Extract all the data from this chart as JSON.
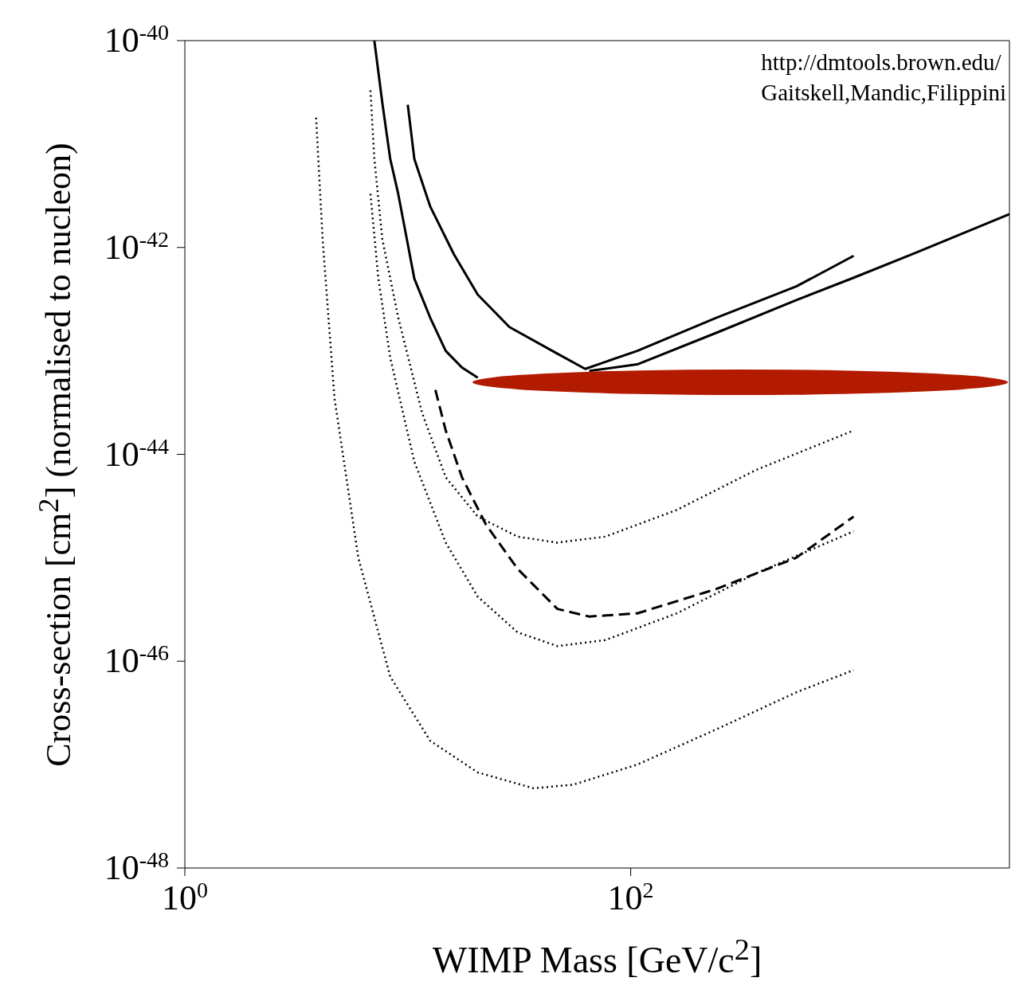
{
  "chart_data": {
    "type": "line",
    "xlabel": "WIMP Mass [GeV/c$^{2}$]",
    "ylabel": "Cross-section [cm$^{2}$] (normalised to nucleon)",
    "log": "xy",
    "xlim": [
      1,
      5000
    ],
    "ylim": [
      1e-48,
      1e-40
    ],
    "xticks": [
      {
        "value": 1,
        "label": "10$^{0}$"
      },
      {
        "value": 100,
        "label": "10$^{2}$"
      }
    ],
    "yticks": [
      {
        "value": 1e-48,
        "label": "10$^{-48}$"
      },
      {
        "value": 1e-46,
        "label": "10$^{-46}$"
      },
      {
        "value": 1e-44,
        "label": "10$^{-44}$"
      },
      {
        "value": 1e-42,
        "label": "10$^{-42}$"
      },
      {
        "value": 1e-40,
        "label": "10$^{-40}$"
      }
    ],
    "annotations": [
      "http://dmtools.brown.edu/",
      "Gaitskell,Mandic,Filippini"
    ],
    "series": [
      {
        "color": "#000000",
        "line_style": "solid",
        "x": [
          7.08,
          7.69,
          8.34,
          9.06,
          10.7,
          12.6,
          14.8,
          17.5,
          20.6,
          28.6,
          46.9,
          65.2,
          107,
          243,
          553,
          1000,
          1900,
          5000
        ],
        "values": [
          1e-40,
          2.5e-41,
          7.2e-42,
          3.3e-42,
          5e-43,
          2.1e-43,
          1e-43,
          6.9e-44,
          5.5e-44,
          null,
          null,
          6.4e-44,
          7.4e-44,
          1.5e-43,
          3.1e-43,
          5.1e-43,
          8.9e-43,
          2.1e-42
        ]
      },
      {
        "color": "#000000",
        "line_style": "solid",
        "x": [
          10,
          10.7,
          12.6,
          16.1,
          20.6,
          28.6,
          46.9,
          62.5,
          107,
          243,
          553,
          1000
        ],
        "values": [
          2.4e-41,
          7.2e-42,
          2.5e-42,
          8.6e-43,
          3.5e-43,
          1.7e-43,
          9.4e-44,
          6.7e-44,
          1e-43,
          2.1e-43,
          4.2e-43,
          8.3e-43
        ]
      },
      {
        "color": "#000000",
        "line_style": "dashed",
        "x": [
          13.3,
          14.8,
          17.5,
          22.4,
          31.1,
          46.9,
          65.2,
          107,
          243,
          553,
          1000
        ],
        "values": [
          4.2e-44,
          1.7e-44,
          6e-45,
          2.1e-45,
          7.8e-46,
          3.2e-46,
          2.7e-46,
          2.9e-46,
          5e-46,
          1e-45,
          2.5e-45
        ]
      },
      {
        "color": "#000000",
        "line_style": "dotted",
        "x": [
          6.8,
          7.08,
          7.69,
          9.06,
          11.6,
          14.8,
          20.6,
          31.1,
          46.9,
          76.9,
          161,
          367,
          1000
        ],
        "values": [
          3.3e-41,
          7.2e-42,
          1.2e-42,
          2.1e-43,
          2.5e-44,
          6e-45,
          2.5e-45,
          1.6e-45,
          1.4e-45,
          1.6e-45,
          2.9e-45,
          7.1e-45,
          1.7e-44
        ]
      },
      {
        "color": "#000000",
        "line_style": "dotted",
        "x": [
          6.8,
          7.38,
          8.34,
          10.7,
          14.8,
          20.6,
          31.1,
          46.9,
          76.9,
          161,
          367,
          1000
        ],
        "values": [
          3.3e-42,
          5e-43,
          8.6e-44,
          8.5e-45,
          1.4e-45,
          4.2e-46,
          1.9e-46,
          1.4e-46,
          1.6e-46,
          2.9e-46,
          7.1e-46,
          1.8e-45
        ]
      },
      {
        "color": "#000000",
        "line_style": "dotted",
        "x": [
          3.88,
          4.15,
          4.69,
          6.0,
          8.34,
          12.6,
          20.6,
          36.7,
          55.3,
          107,
          243,
          553,
          1000
        ],
        "values": [
          1.8e-41,
          1.2e-42,
          3.5e-44,
          1e-45,
          7.1e-47,
          1.7e-47,
          8.4e-48,
          5.9e-48,
          6.4e-48,
          1e-47,
          2.2e-47,
          5e-47,
          8.2e-47
        ]
      }
    ]
  }
}
